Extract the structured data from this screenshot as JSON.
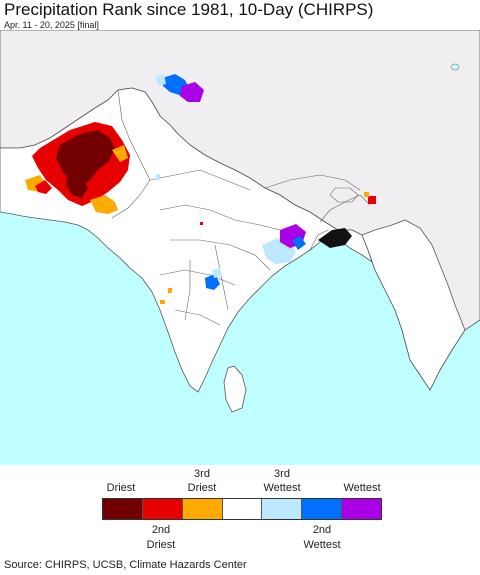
{
  "title": "Precipitation Rank since 1981, 10-Day (CHIRPS)",
  "subtitle": "Apr. 11 - 20, 2025 [final]",
  "map": {
    "ocean_color": "#bfffff",
    "land_color": "#ffffff",
    "outside_region_color": "#f0eef0",
    "border_color": "#555555"
  },
  "legend": {
    "categories": [
      {
        "label": "Driest",
        "color": "#730000"
      },
      {
        "label": "2nd Driest",
        "color": "#e60000"
      },
      {
        "label": "3rd Driest",
        "color": "#ffaa00"
      },
      {
        "label": "",
        "color": "#ffffff"
      },
      {
        "label": "3rd Wettest",
        "color": "#bee8ff"
      },
      {
        "label": "2nd Wettest",
        "color": "#0070ff"
      },
      {
        "label": "Wettest",
        "color": "#a900e6"
      }
    ],
    "top_labels": {
      "driest": "Driest",
      "third_driest_l1": "3rd",
      "third_driest_l2": "Driest",
      "third_wettest_l1": "3rd",
      "third_wettest_l2": "Wettest",
      "wettest": "Wettest"
    },
    "bottom_labels": {
      "second_driest_l1": "2nd",
      "second_driest_l2": "Driest",
      "second_wettest_l1": "2nd",
      "second_wettest_l2": "Wettest"
    }
  },
  "source": "Source: CHIRPS, UCSB, Climate Hazards Center"
}
